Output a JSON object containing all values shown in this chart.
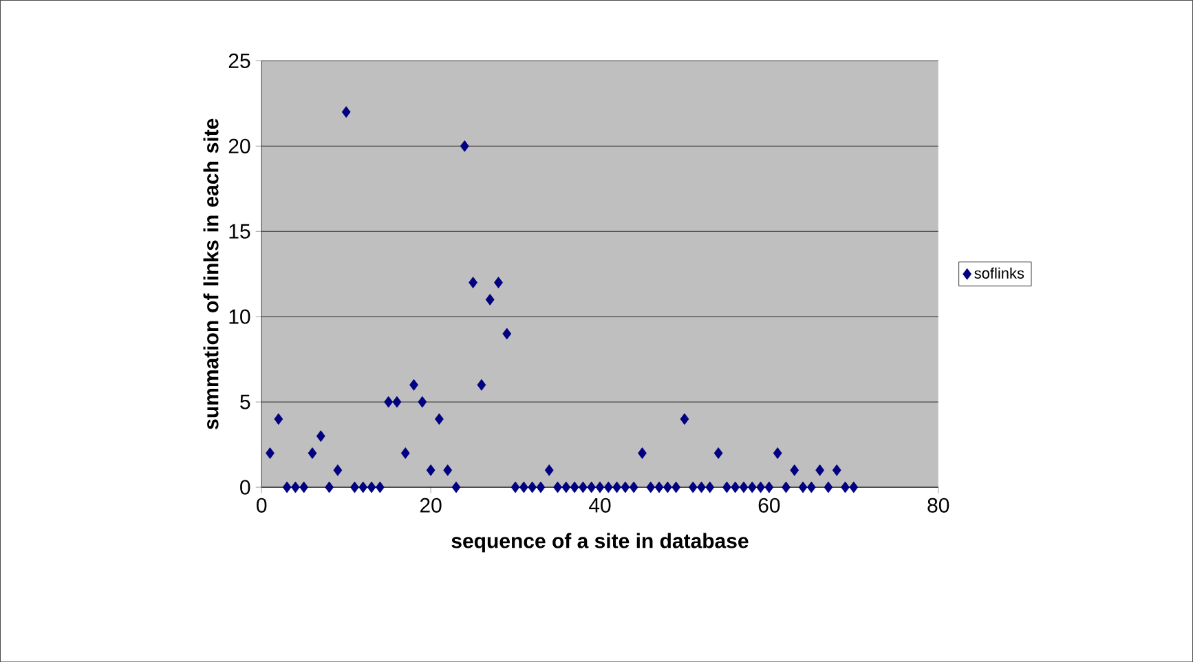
{
  "chart_data": {
    "type": "scatter",
    "xlabel": "sequence of a site in database",
    "ylabel": "summation of links in each site",
    "x": [
      1,
      2,
      3,
      4,
      5,
      6,
      7,
      8,
      9,
      10,
      11,
      12,
      13,
      14,
      15,
      16,
      17,
      18,
      19,
      20,
      21,
      22,
      23,
      24,
      25,
      26,
      27,
      28,
      29,
      30,
      31,
      32,
      33,
      34,
      35,
      36,
      37,
      38,
      39,
      40,
      41,
      42,
      43,
      44,
      45,
      46,
      47,
      48,
      49,
      50,
      51,
      52,
      53,
      54,
      55,
      56,
      57,
      58,
      59,
      60,
      61,
      62,
      63,
      64,
      65,
      66,
      67,
      68,
      69,
      70
    ],
    "series": [
      {
        "name": "soflinks",
        "color": "#000080",
        "values": [
          2,
          4,
          0,
          0,
          0,
          2,
          3,
          0,
          1,
          22,
          0,
          0,
          0,
          0,
          5,
          5,
          2,
          6,
          5,
          1,
          4,
          1,
          0,
          20,
          12,
          6,
          11,
          12,
          9,
          0,
          0,
          0,
          0,
          1,
          0,
          0,
          0,
          0,
          0,
          0,
          0,
          0,
          0,
          0,
          2,
          0,
          0,
          0,
          0,
          4,
          0,
          0,
          0,
          2,
          0,
          0,
          0,
          0,
          0,
          0,
          2,
          0,
          1,
          0,
          0,
          1,
          0,
          1,
          0,
          0
        ]
      }
    ],
    "xlim": [
      0,
      80
    ],
    "xticks": [
      0,
      20,
      40,
      60,
      80
    ],
    "ylim": [
      0,
      25
    ],
    "yticks": [
      0,
      5,
      10,
      15,
      20,
      25
    ],
    "grid": "y",
    "legend": "right",
    "marker": "diamond"
  }
}
